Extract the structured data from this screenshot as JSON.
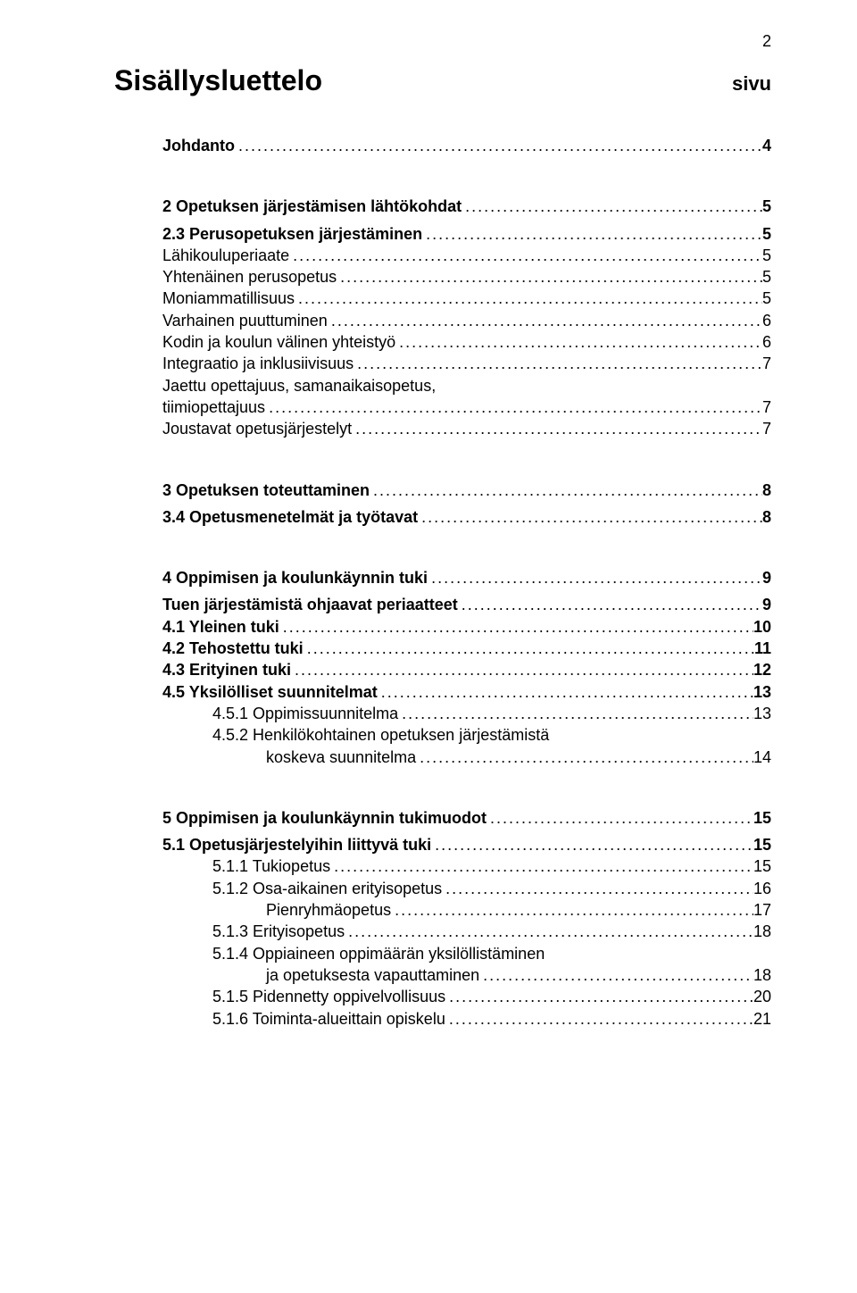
{
  "pageNumber": "2",
  "title": "Sisällysluettelo",
  "sivu": "sivu",
  "lines": [
    {
      "label": "Johdanto",
      "page": "4",
      "bold": true,
      "indent": 1,
      "gapAfter": "large"
    },
    {
      "label": "2 Opetuksen järjestämisen lähtökohdat",
      "page": "5",
      "bold": true,
      "indent": 1,
      "gapAfter": "small"
    },
    {
      "label": "2.3 Perusopetuksen järjestäminen",
      "page": "5",
      "bold": true,
      "indent": 1
    },
    {
      "label": "Lähikouluperiaate",
      "page": "5",
      "bold": false,
      "indent": 1
    },
    {
      "label": "Yhtenäinen perusopetus",
      "page": "5",
      "bold": false,
      "indent": 1
    },
    {
      "label": "Moniammatillisuus",
      "page": "5",
      "bold": false,
      "indent": 1
    },
    {
      "label": "Varhainen puuttuminen",
      "page": "6",
      "bold": false,
      "indent": 1
    },
    {
      "label": "Kodin ja koulun välinen yhteistyö",
      "page": "6",
      "bold": false,
      "indent": 1
    },
    {
      "label": "Integraatio ja inklusiivisuus",
      "page": "7",
      "bold": false,
      "indent": 1
    },
    {
      "label": "Jaettu opettajuus, samanaikaisopetus,",
      "page": "",
      "bold": false,
      "indent": 1,
      "noLeader": true
    },
    {
      "label": "tiimiopettajuus",
      "page": "7",
      "bold": false,
      "indent": 1
    },
    {
      "label": "Joustavat opetusjärjestelyt",
      "page": "7",
      "bold": false,
      "indent": 1,
      "gapAfter": "large"
    },
    {
      "label": "3 Opetuksen toteuttaminen",
      "page": "8",
      "bold": true,
      "indent": 1,
      "gapAfter": "small"
    },
    {
      "label": "3.4 Opetusmenetelmät ja työtavat",
      "page": "8",
      "bold": true,
      "indent": 1,
      "gapAfter": "large"
    },
    {
      "label": "4 Oppimisen ja koulunkäynnin tuki",
      "page": "9",
      "bold": true,
      "indent": 1,
      "gapAfter": "small"
    },
    {
      "label": "Tuen järjestämistä ohjaavat periaatteet",
      "page": "9",
      "bold": true,
      "indent": 1
    },
    {
      "label": "4.1 Yleinen tuki",
      "page": "10",
      "bold": true,
      "indent": 1
    },
    {
      "label": "4.2 Tehostettu tuki",
      "page": "11",
      "bold": true,
      "indent": 1
    },
    {
      "label": "4.3 Erityinen tuki",
      "page": "12",
      "bold": true,
      "indent": 1
    },
    {
      "label": "4.5 Yksilölliset suunnitelmat",
      "page": "13",
      "bold": true,
      "indent": 1
    },
    {
      "label": "4.5.1 Oppimissuunnitelma",
      "page": "13",
      "bold": false,
      "indent": 2
    },
    {
      "label": "4.5.2 Henkilökohtainen opetuksen järjestämistä",
      "page": "",
      "bold": false,
      "indent": 2,
      "noLeader": true
    },
    {
      "label": "koskeva suunnitelma",
      "page": "14",
      "bold": false,
      "indent": 3,
      "gapAfter": "large"
    },
    {
      "label": "5 Oppimisen ja koulunkäynnin tukimuodot",
      "page": "15",
      "bold": true,
      "indent": 1,
      "gapAfter": "small"
    },
    {
      "label": "5.1 Opetusjärjestelyihin liittyvä tuki",
      "page": "15",
      "bold": true,
      "indent": 1
    },
    {
      "label": "5.1.1 Tukiopetus",
      "page": "15",
      "bold": false,
      "indent": 2
    },
    {
      "label": "5.1.2 Osa-aikainen erityisopetus",
      "page": "16",
      "bold": false,
      "indent": 2
    },
    {
      "label": "Pienryhmäopetus",
      "page": "17",
      "bold": false,
      "indent": 3
    },
    {
      "label": "5.1.3 Erityisopetus",
      "page": "18",
      "bold": false,
      "indent": 2
    },
    {
      "label": "5.1.4 Oppiaineen oppimäärän yksilöllistäminen",
      "page": "",
      "bold": false,
      "indent": 2,
      "noLeader": true
    },
    {
      "label": "ja opetuksesta vapauttaminen",
      "page": "18",
      "bold": false,
      "indent": 3
    },
    {
      "label": "5.1.5 Pidennetty oppivelvollisuus",
      "page": "20",
      "bold": false,
      "indent": 2
    },
    {
      "label": "5.1.6 Toiminta-alueittain opiskelu",
      "page": "21",
      "bold": false,
      "indent": 2
    }
  ]
}
